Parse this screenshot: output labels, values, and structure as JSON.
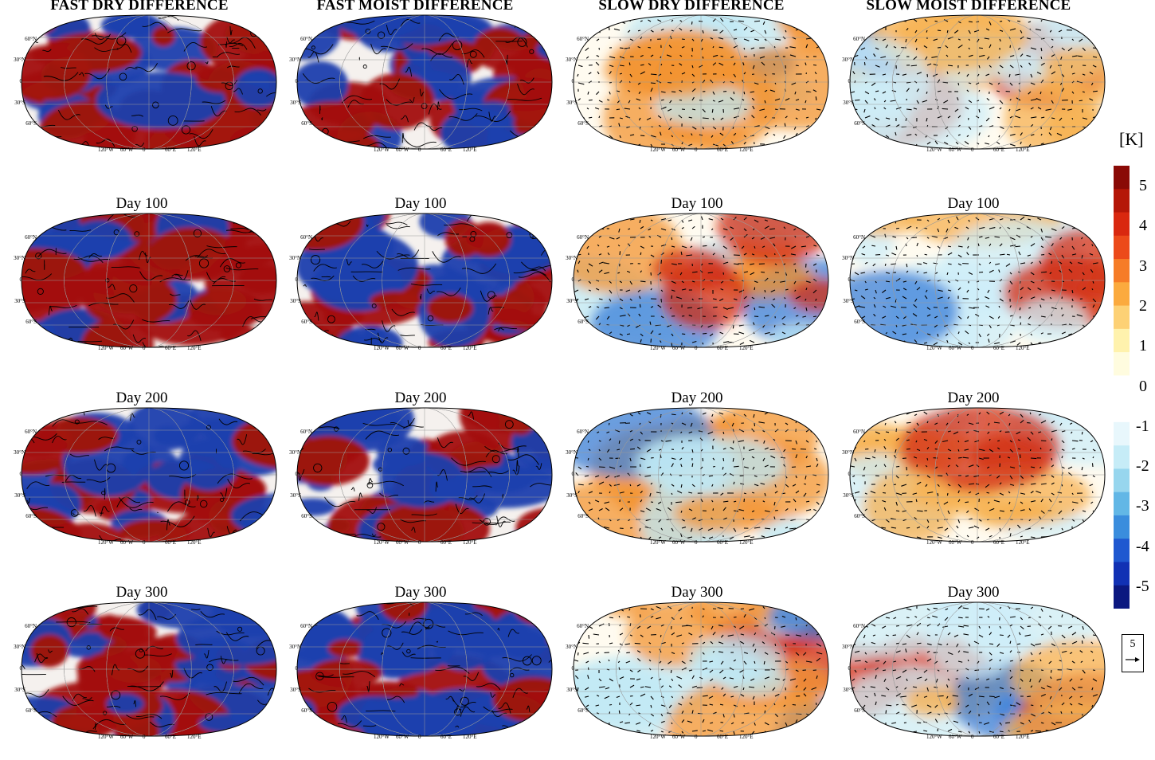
{
  "column_titles": [
    "FAST DRY DIFFERENCE",
    "FAST MOIST DIFFERENCE",
    "SLOW DRY DIFFERENCE",
    "SLOW MOIST DIFFERENCE"
  ],
  "row_titles": [
    "",
    "Day 100",
    "Day 200",
    "Day 300"
  ],
  "latitude_labels": [
    "60°N",
    "30°N",
    "0",
    "30°S",
    "60°S"
  ],
  "longitude_labels": [
    "120°W",
    "60°W",
    "0",
    "60°E",
    "120°E"
  ],
  "colorbar": {
    "unit": "[K]",
    "ticks": [
      "5",
      "4",
      "3",
      "2",
      "1",
      "0",
      "-1",
      "-2",
      "-3",
      "-4",
      "-5"
    ],
    "colors": [
      "#8a0a06",
      "#b51708",
      "#d9280f",
      "#ec4a1a",
      "#f67c27",
      "#fbaa3e",
      "#fdd175",
      "#fff2ad",
      "#fffcdf",
      "#ffffff",
      "#ffffff",
      "#e8f7fc",
      "#c6ecf7",
      "#97d6ee",
      "#62b7e6",
      "#3a8ddd",
      "#1f58d0",
      "#1131b4",
      "#0b1880"
    ]
  },
  "vector_key": {
    "label": "5"
  },
  "panel_styles": {
    "fast_dry": {
      "warm": "#a31208",
      "cold": "#1c3fae"
    },
    "fast_moist": {
      "warm": "#a31208",
      "cold": "#1c3fae"
    },
    "slow_dry": {
      "warm": "#f39433",
      "cold": "#bfe8f5"
    },
    "slow_moist": {
      "warm": "#f7b04f",
      "cold": "#cdeef8"
    }
  }
}
